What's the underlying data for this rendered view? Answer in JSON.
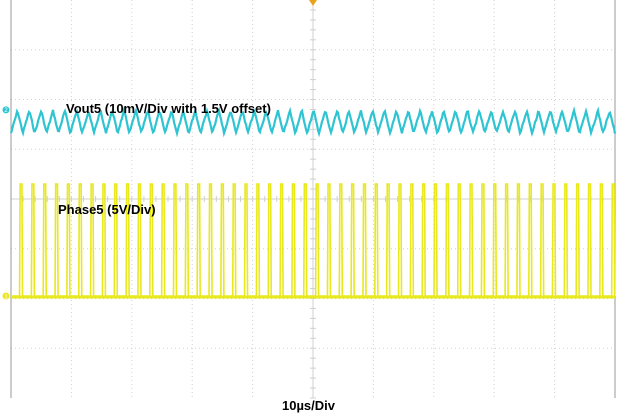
{
  "chart_data": {
    "type": "line",
    "title": "",
    "xlabel": "10µs/Div",
    "ylabel": "",
    "divisions": {
      "horizontal": 10,
      "vertical": 8
    },
    "grid": true,
    "series": [
      {
        "name": "Vout5 (10mV/Div with 1.5V offset)",
        "channel": "2",
        "color": "#2ec4d2",
        "level_div": 5.55,
        "ripple_cycles": 51,
        "ripple_pp_div": 0.45
      },
      {
        "name": "Phase5 (5V/Div)",
        "channel": "1",
        "color": "#e8e81c",
        "baseline_div": 2.05,
        "high_div": 4.3,
        "pulse_count": 51
      }
    ],
    "marker_colors": {
      "ch1": "#e8e81c",
      "ch2": "#2ec4d2",
      "trigger": "#e8a21c"
    },
    "grid_color": "#d0d0d0",
    "frame_color": "#9a9a9a"
  }
}
